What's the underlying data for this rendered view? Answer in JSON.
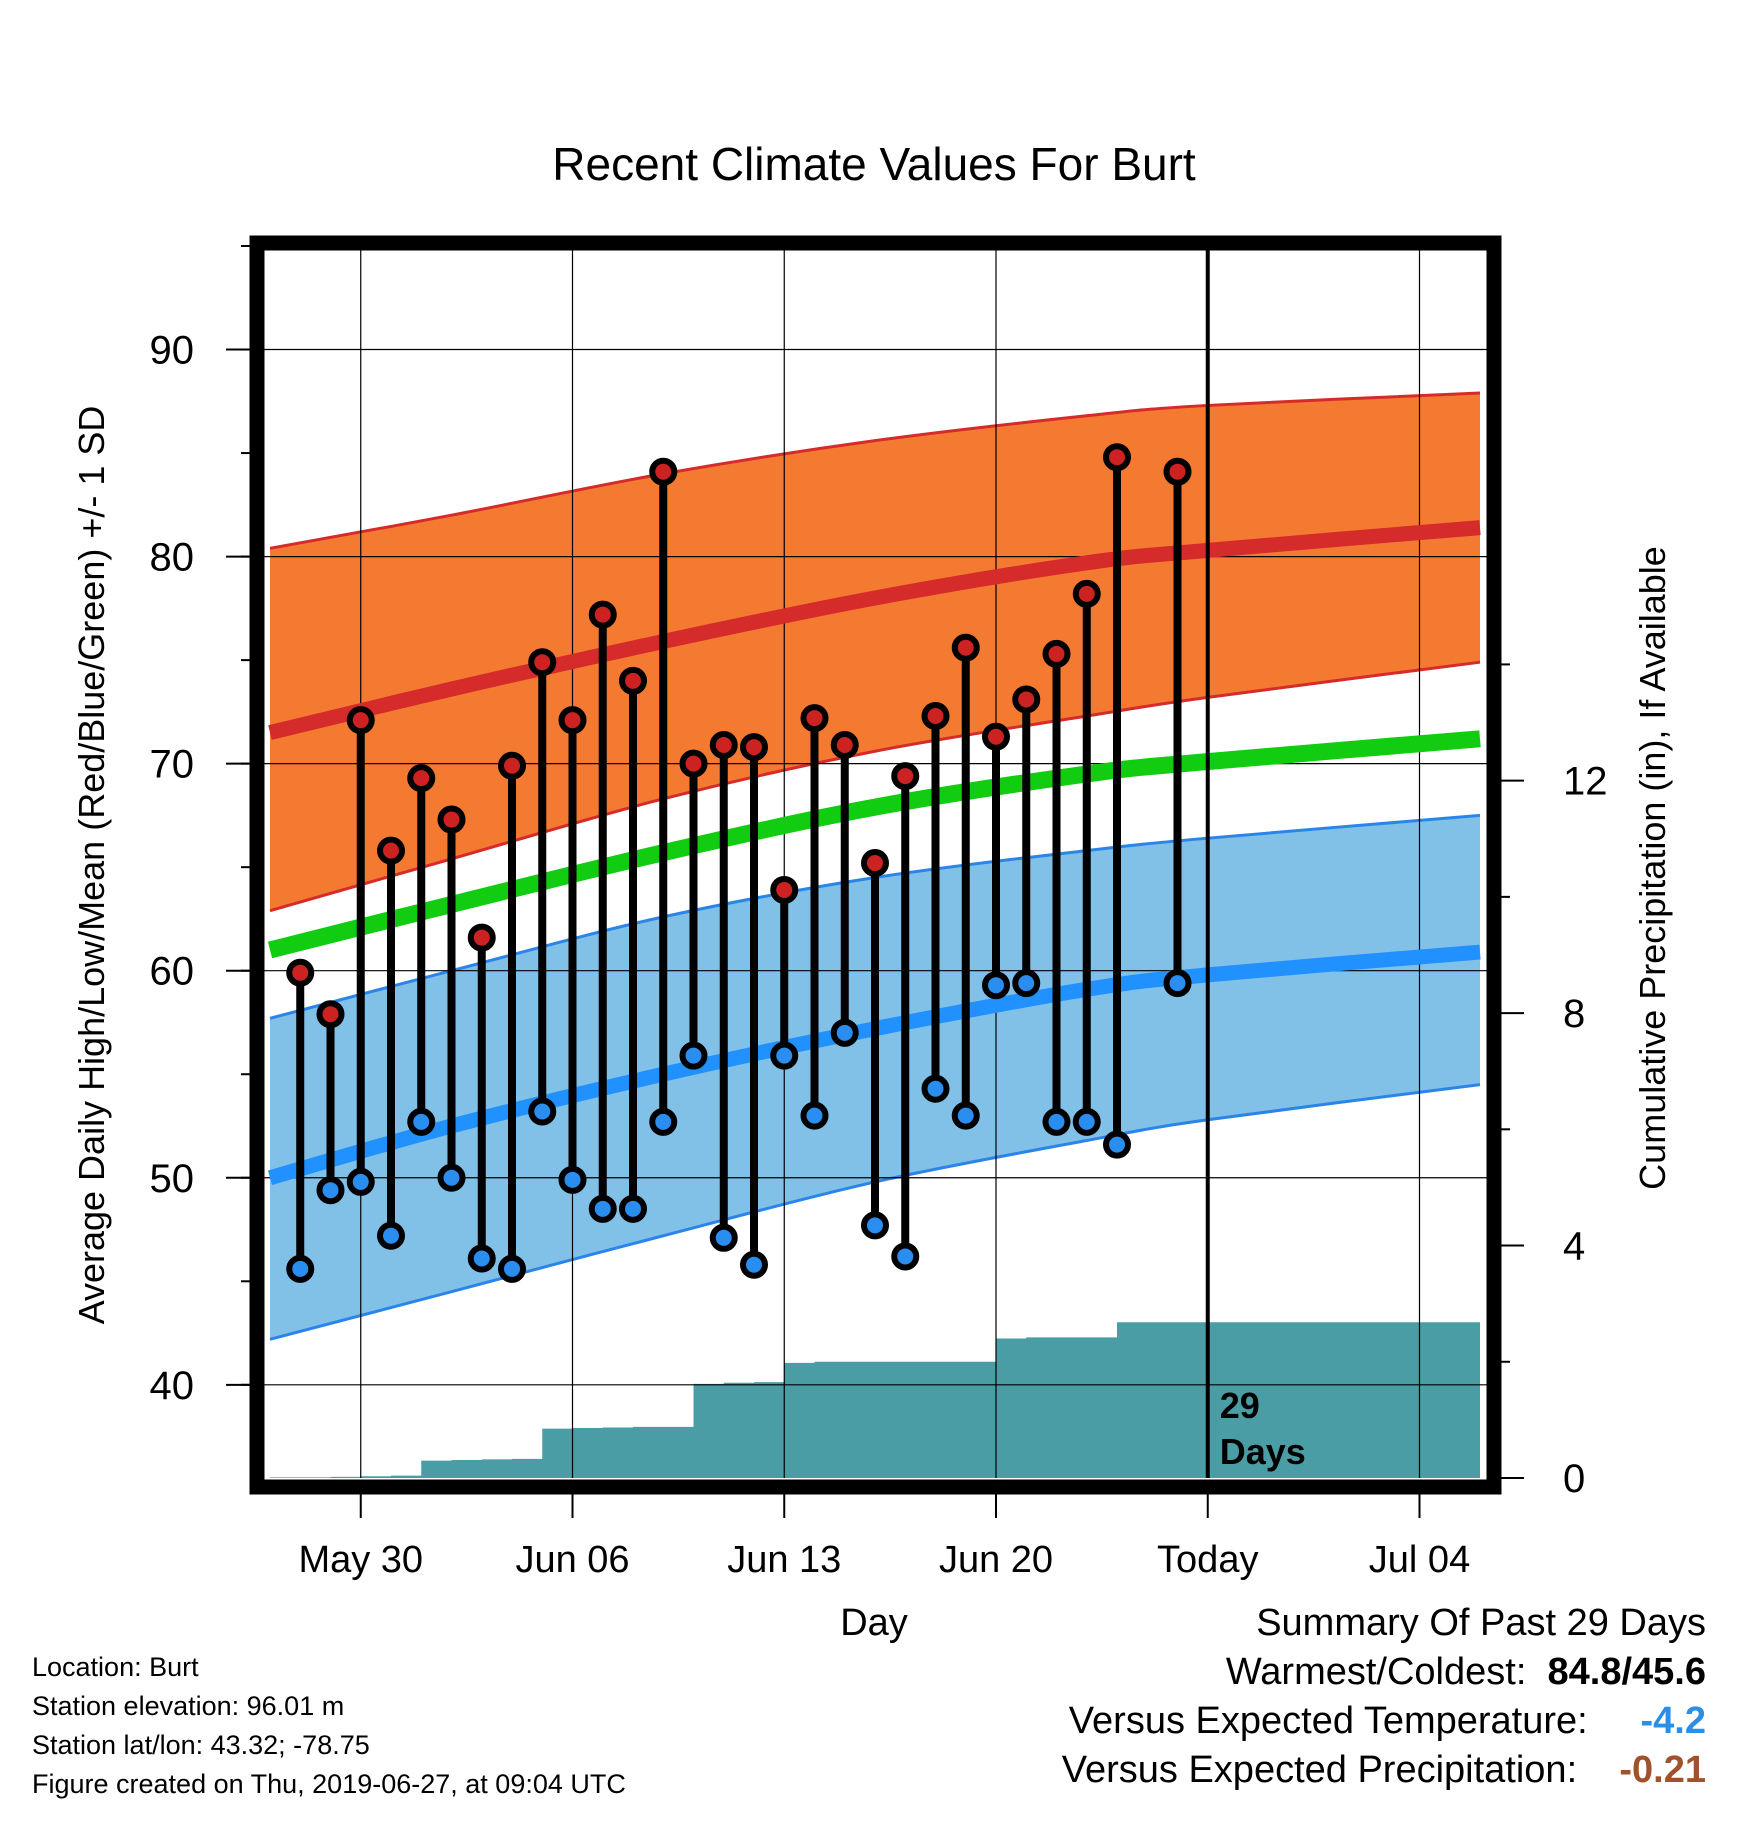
{
  "chart_data": {
    "type": "line",
    "title": "Recent Climate Values For Burt",
    "xlabel": "Day",
    "ylabel": "Average Daily High/Low/Mean (Red/Blue/Green) +/- 1 SD",
    "y2label": "Cumulative Precipitation (in), If Available",
    "ylim": [
      35.5,
      95
    ],
    "y2lim": [
      0,
      21.2
    ],
    "yticks": [
      "40",
      "50",
      "60",
      "70",
      "80",
      "90"
    ],
    "y2ticks": [
      "0",
      "4",
      "8",
      "12"
    ],
    "xticks": [
      "May 30",
      "Jun 06",
      "Jun 13",
      "Jun 20",
      "Today",
      "Jul 04"
    ],
    "grid": true,
    "x_dates": {
      "first": "May 27",
      "last": "Jul 06",
      "today": "Jun 27"
    },
    "today_label": "29 Days",
    "observed": {
      "dates": [
        "May 28",
        "May 29",
        "May 30",
        "May 31",
        "Jun 01",
        "Jun 02",
        "Jun 03",
        "Jun 04",
        "Jun 05",
        "Jun 06",
        "Jun 07",
        "Jun 08",
        "Jun 09",
        "Jun 10",
        "Jun 11",
        "Jun 12",
        "Jun 13",
        "Jun 14",
        "Jun 15",
        "Jun 16",
        "Jun 17",
        "Jun 18",
        "Jun 19",
        "Jun 20",
        "Jun 21",
        "Jun 22",
        "Jun 23",
        "Jun 24",
        "Jun 26"
      ],
      "high": [
        59.9,
        57.9,
        72.1,
        65.8,
        69.3,
        67.3,
        61.6,
        69.9,
        74.9,
        72.1,
        77.2,
        74.0,
        84.1,
        70.0,
        70.9,
        70.8,
        63.9,
        72.2,
        70.9,
        65.2,
        69.4,
        72.3,
        75.6,
        71.3,
        73.1,
        75.3,
        78.2,
        84.8,
        84.1
      ],
      "low": [
        45.6,
        49.4,
        49.8,
        47.2,
        52.7,
        50.0,
        46.1,
        45.6,
        53.2,
        49.9,
        48.5,
        48.5,
        52.7,
        55.9,
        47.1,
        45.8,
        55.9,
        53.0,
        57.0,
        47.7,
        46.2,
        54.3,
        53.0,
        59.3,
        59.4,
        52.7,
        52.7,
        51.6,
        59.4
      ]
    },
    "normals": {
      "dates": [
        "May 27",
        "Jun 02",
        "Jun 09",
        "Jun 16",
        "Jun 23",
        "Jun 27",
        "Jul 06"
      ],
      "high_mean": [
        71.5,
        73.6,
        75.9,
        78.0,
        79.7,
        80.3,
        81.4
      ],
      "high_upper": [
        80.4,
        82.0,
        84.0,
        85.6,
        86.8,
        87.3,
        87.9
      ],
      "high_lower": [
        62.9,
        65.4,
        68.3,
        70.6,
        72.3,
        73.2,
        74.9
      ],
      "avg_mean": [
        61.0,
        63.2,
        65.7,
        67.9,
        69.5,
        70.1,
        71.2
      ],
      "low_mean": [
        50.0,
        52.5,
        55.0,
        57.2,
        59.1,
        59.8,
        60.9
      ],
      "low_upper": [
        57.7,
        60.0,
        62.6,
        64.5,
        65.8,
        66.4,
        67.5
      ],
      "low_lower": [
        42.2,
        44.5,
        47.2,
        49.8,
        51.8,
        52.8,
        54.5
      ]
    },
    "precip": {
      "dates": [
        "May 27",
        "May 29",
        "May 30",
        "May 31",
        "Jun 01",
        "Jun 02",
        "Jun 03",
        "Jun 04",
        "Jun 05",
        "Jun 06",
        "Jun 07",
        "Jun 08",
        "Jun 09",
        "Jun 10",
        "Jun 11",
        "Jun 12",
        "Jun 13",
        "Jun 14",
        "Jun 15",
        "Jun 16",
        "Jun 17",
        "Jun 18",
        "Jun 19",
        "Jun 20",
        "Jun 21",
        "Jun 22",
        "Jun 23",
        "Jun 24",
        "Jun 25",
        "Jul 06"
      ],
      "cumulative": [
        0.01,
        0.02,
        0.03,
        0.04,
        0.3,
        0.31,
        0.32,
        0.33,
        0.85,
        0.86,
        0.87,
        0.88,
        0.88,
        1.62,
        1.64,
        1.65,
        1.98,
        2.0,
        2.0,
        2.0,
        2.0,
        2.0,
        2.0,
        2.4,
        2.42,
        2.42,
        2.42,
        2.68,
        2.68,
        2.68
      ]
    },
    "colors": {
      "high_band": "#f47a32",
      "high_line": "#d52b2a",
      "low_band": "#82c1e7",
      "low_line": "#2191ff",
      "low_edge": "#2b85e8",
      "mean_line": "#11cc11",
      "precip": "#4a9da4",
      "high_dot": "#cc2222",
      "low_dot": "#2a8df0"
    }
  },
  "footer": {
    "location": "Location: Burt",
    "elevation": "Station elevation: 96.01 m",
    "latlon": "Station lat/lon: 43.32; -78.75",
    "created": "Figure created on Thu, 2019-06-27, at 09:04 UTC"
  },
  "summary": {
    "title": "Summary Of Past 29 Days",
    "warmest_coldest_label": "Warmest/Coldest:",
    "warmest_coldest_value": "84.8/45.6",
    "temp_label": "Versus Expected Temperature:",
    "temp_value": "-4.2",
    "temp_color": "#2b8fe8",
    "precip_label": "Versus Expected Precipitation:",
    "precip_value": "-0.21",
    "precip_color": "#a0522d"
  }
}
